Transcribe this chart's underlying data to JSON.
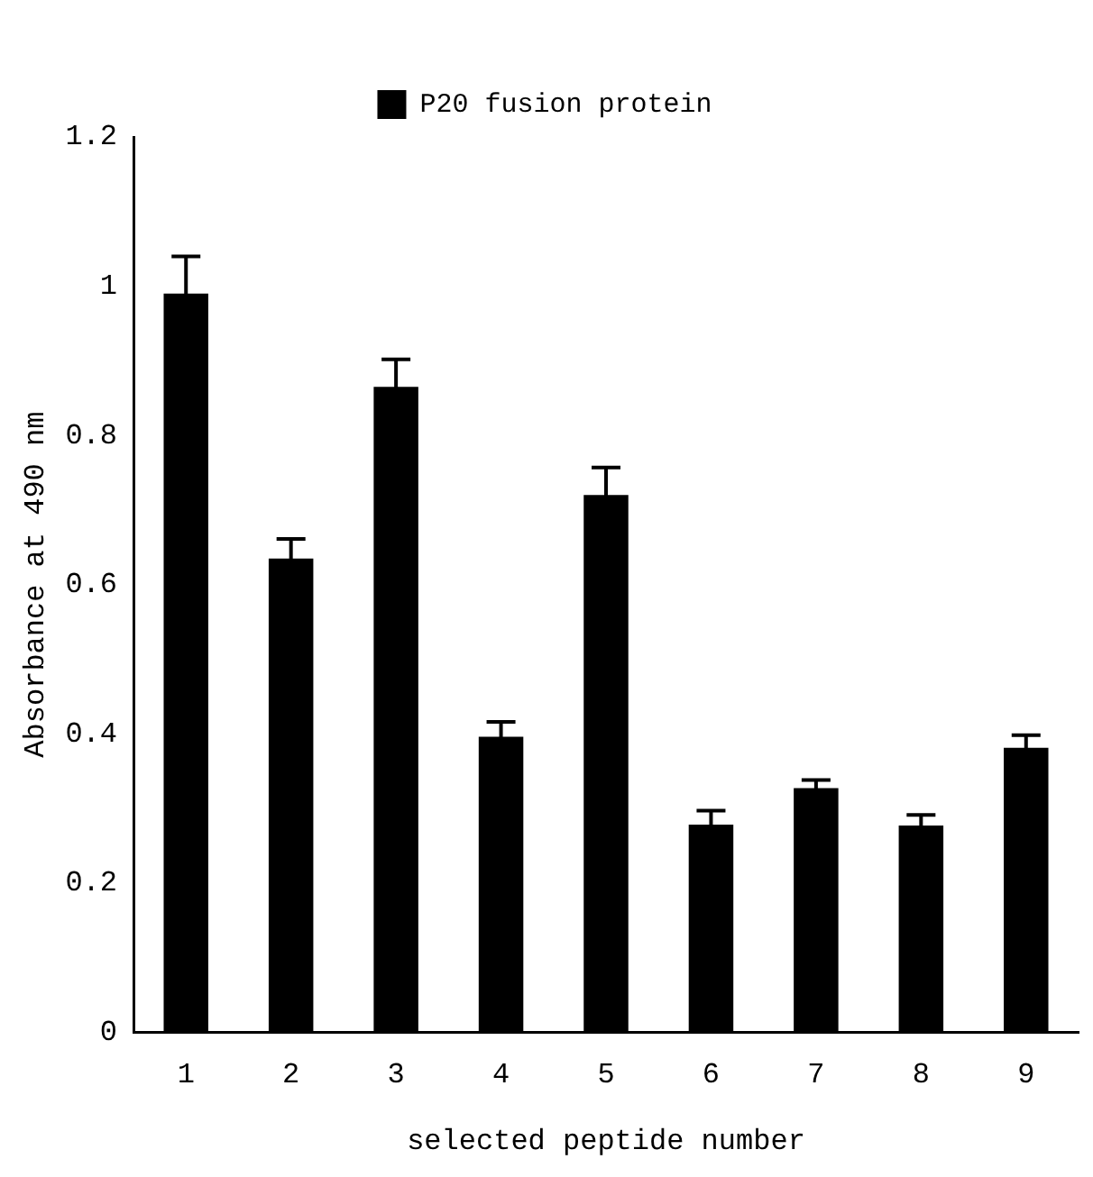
{
  "chart_data": {
    "type": "bar",
    "xlabel": "selected peptide number",
    "ylabel": "Absorbance at 490 nm",
    "categories": [
      "1",
      "2",
      "3",
      "4",
      "5",
      "6",
      "7",
      "8",
      "9"
    ],
    "series": [
      {
        "name": "P20 fusion protein",
        "color": "#000000",
        "values": [
          0.99,
          0.635,
          0.865,
          0.396,
          0.72,
          0.278,
          0.327,
          0.277,
          0.381
        ],
        "errors": [
          0.05,
          0.026,
          0.037,
          0.02,
          0.037,
          0.019,
          0.011,
          0.014,
          0.017
        ]
      }
    ],
    "ylim": [
      0,
      1.2
    ],
    "yticks": [
      0,
      0.2,
      0.4,
      0.6,
      0.8,
      1,
      1.2
    ],
    "grid": false,
    "legend": "top"
  }
}
